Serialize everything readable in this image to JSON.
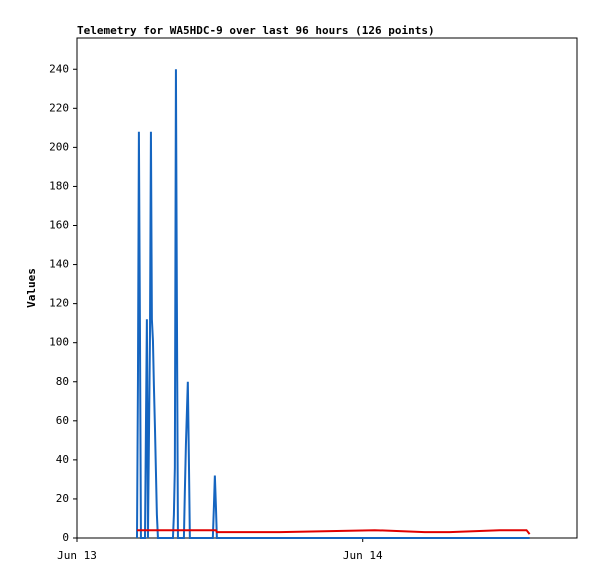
{
  "chart_data": {
    "type": "line",
    "title": "Telemetry for WA5HDC-9 over last 96 hours (126 points)",
    "y_label": "Values",
    "xlim": [
      0,
      42
    ],
    "xticks": [
      {
        "value": 0,
        "label": "Jun 13"
      },
      {
        "value": 24,
        "label": "Jun 14"
      }
    ],
    "ylim": [
      0,
      256
    ],
    "yticks": [
      0,
      20,
      40,
      60,
      80,
      100,
      120,
      140,
      160,
      180,
      200,
      220,
      240
    ],
    "x": [
      5.04,
      5.12,
      5.2,
      5.29,
      5.37,
      5.71,
      5.79,
      5.87,
      5.96,
      6.13,
      6.21,
      6.29,
      6.38,
      6.46,
      6.55,
      6.63,
      6.71,
      6.8,
      8.06,
      8.14,
      8.22,
      8.31,
      8.39,
      8.48,
      8.98,
      9.06,
      9.15,
      9.31,
      9.4,
      9.48,
      11.41,
      11.5,
      11.58,
      11.67,
      11.75,
      17.04,
      25.01,
      29.2,
      31.3,
      35.5,
      37.76,
      38.02
    ],
    "series": [
      {
        "color": "#1565c0",
        "values": [
          0,
          80,
          208,
          104,
          0,
          0,
          56,
          112,
          0,
          104,
          208,
          112,
          101,
          78,
          56,
          34,
          12,
          0,
          0,
          12,
          36,
          240,
          120,
          0,
          0,
          24,
          48,
          80,
          40,
          0,
          0,
          16,
          32,
          16,
          0,
          0,
          0,
          0,
          0,
          0,
          0,
          0
        ]
      },
      {
        "color": "#e00000",
        "values": [
          4,
          4,
          4,
          4,
          4,
          4,
          4,
          4,
          4,
          4,
          4,
          4,
          4,
          4,
          4,
          4,
          4,
          4,
          4,
          4,
          4,
          4,
          4,
          4,
          4,
          4,
          4,
          4,
          4,
          4,
          4,
          4,
          4,
          4,
          3,
          3,
          4,
          3,
          3,
          4,
          4,
          2
        ]
      }
    ]
  }
}
